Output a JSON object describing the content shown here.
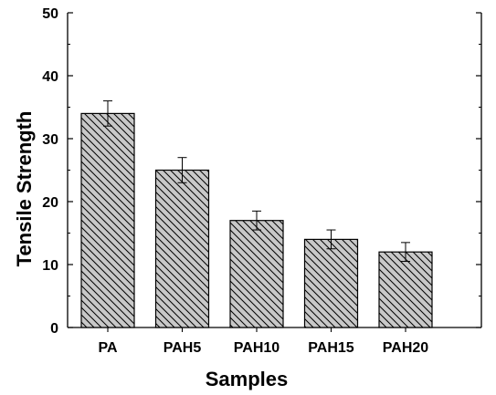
{
  "chart_data": {
    "type": "bar",
    "title": "",
    "xlabel": "Samples",
    "ylabel": "Tensile Strength",
    "categories": [
      "PA",
      "PAH5",
      "PAH10",
      "PAH15",
      "PAH20"
    ],
    "values": [
      34,
      25,
      17,
      14,
      12
    ],
    "errors": [
      2,
      2,
      1.5,
      1.5,
      1.5
    ],
    "ylim": [
      0,
      50
    ],
    "yticks": [
      0,
      10,
      20,
      30,
      40,
      50
    ],
    "grid": false,
    "legend": "none",
    "bar_fill": "#c8c8c8",
    "hatch_color": "#000000"
  }
}
